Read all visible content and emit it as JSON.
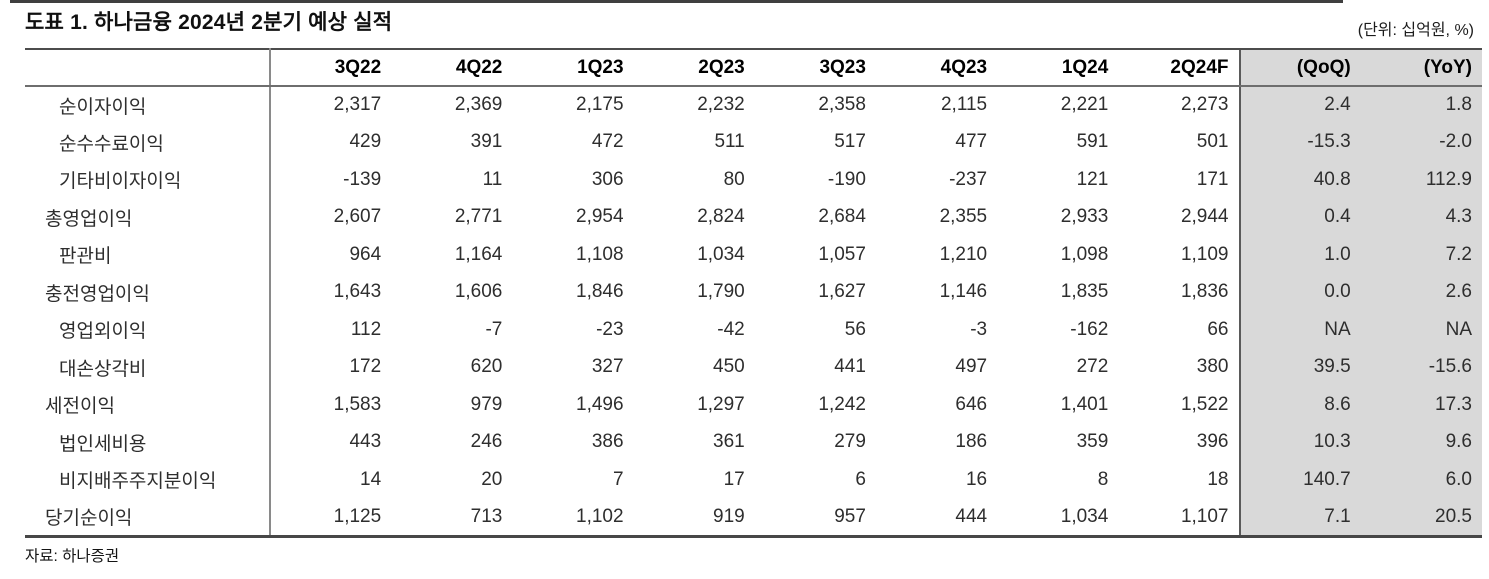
{
  "page": {
    "title": "도표 1. 하나금융 2024년 2분기 예상 실적",
    "unit_note": "(단위: 십억원, %)",
    "source": "자료: 하나증권"
  },
  "colors": {
    "highlight_bg": "#d9d9d9",
    "rule_dark": "#474747",
    "rule_light": "#8a8a8a",
    "text": "#2e2e2e"
  },
  "table": {
    "columns": [
      "3Q22",
      "4Q22",
      "1Q23",
      "2Q23",
      "3Q23",
      "4Q23",
      "1Q24",
      "2Q24F",
      "(QoQ)",
      "(YoY)"
    ],
    "highlighted_columns": [
      "(QoQ)",
      "(YoY)"
    ],
    "rows": [
      {
        "label": "순이자이익",
        "indent": 1,
        "values": [
          "2,317",
          "2,369",
          "2,175",
          "2,232",
          "2,358",
          "2,115",
          "2,221",
          "2,273",
          "2.4",
          "1.8"
        ]
      },
      {
        "label": "순수수료이익",
        "indent": 1,
        "values": [
          "429",
          "391",
          "472",
          "511",
          "517",
          "477",
          "591",
          "501",
          "-15.3",
          "-2.0"
        ]
      },
      {
        "label": "기타비이자이익",
        "indent": 1,
        "values": [
          "-139",
          "11",
          "306",
          "80",
          "-190",
          "-237",
          "121",
          "171",
          "40.8",
          "112.9"
        ]
      },
      {
        "label": "총영업이익",
        "indent": 0,
        "values": [
          "2,607",
          "2,771",
          "2,954",
          "2,824",
          "2,684",
          "2,355",
          "2,933",
          "2,944",
          "0.4",
          "4.3"
        ]
      },
      {
        "label": "판관비",
        "indent": 1,
        "values": [
          "964",
          "1,164",
          "1,108",
          "1,034",
          "1,057",
          "1,210",
          "1,098",
          "1,109",
          "1.0",
          "7.2"
        ]
      },
      {
        "label": "충전영업이익",
        "indent": 0,
        "values": [
          "1,643",
          "1,606",
          "1,846",
          "1,790",
          "1,627",
          "1,146",
          "1,835",
          "1,836",
          "0.0",
          "2.6"
        ]
      },
      {
        "label": "영업외이익",
        "indent": 1,
        "values": [
          "112",
          "-7",
          "-23",
          "-42",
          "56",
          "-3",
          "-162",
          "66",
          "NA",
          "NA"
        ]
      },
      {
        "label": "대손상각비",
        "indent": 1,
        "values": [
          "172",
          "620",
          "327",
          "450",
          "441",
          "497",
          "272",
          "380",
          "39.5",
          "-15.6"
        ]
      },
      {
        "label": "세전이익",
        "indent": 0,
        "values": [
          "1,583",
          "979",
          "1,496",
          "1,297",
          "1,242",
          "646",
          "1,401",
          "1,522",
          "8.6",
          "17.3"
        ]
      },
      {
        "label": "법인세비용",
        "indent": 1,
        "values": [
          "443",
          "246",
          "386",
          "361",
          "279",
          "186",
          "359",
          "396",
          "10.3",
          "9.6"
        ]
      },
      {
        "label": "비지배주주지분이익",
        "indent": 1,
        "values": [
          "14",
          "20",
          "7",
          "17",
          "6",
          "16",
          "8",
          "18",
          "140.7",
          "6.0"
        ]
      },
      {
        "label": "당기순이익",
        "indent": 0,
        "values": [
          "1,125",
          "713",
          "1,102",
          "919",
          "957",
          "444",
          "1,034",
          "1,107",
          "7.1",
          "20.5"
        ]
      }
    ]
  }
}
